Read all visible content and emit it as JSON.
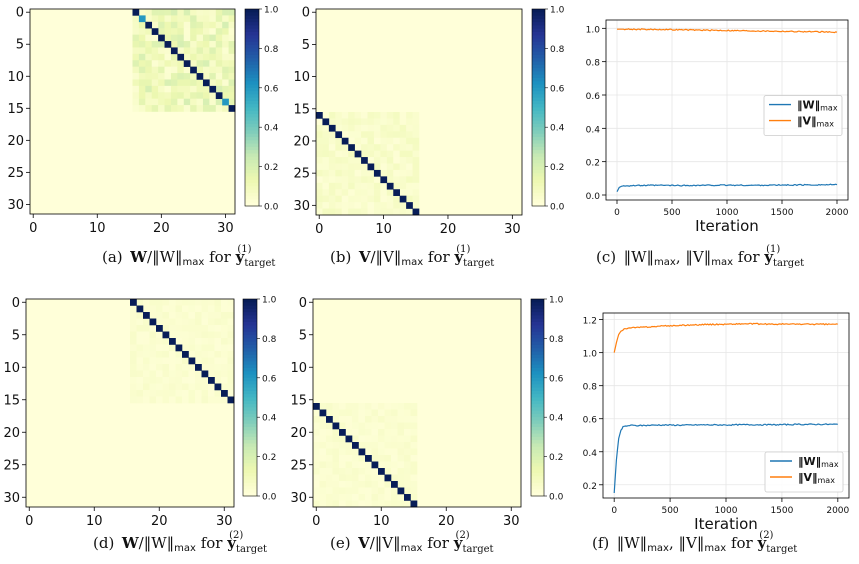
{
  "colors": {
    "scale": [
      "#ffffd9",
      "#edf8b1",
      "#c7e9b4",
      "#7fcdbb",
      "#41b6c4",
      "#1d91c0",
      "#225ea8",
      "#253494",
      "#081d58"
    ],
    "w_series": "#1f77b4",
    "v_series": "#ff7f0e"
  },
  "chart_data": [
    {
      "id": "a",
      "type": "heatmap",
      "caption": {
        "label": "(a)",
        "matrix": "W",
        "norm": "‖W‖",
        "sub": "max",
        "for": "for",
        "target": "y",
        "target_sub": "target",
        "target_sup": "(1)"
      },
      "size": 32,
      "diagonal": {
        "rows": [
          0,
          15
        ],
        "col_offset": 16,
        "value": 1.0
      },
      "diagonal_overrides": [
        {
          "row": 1,
          "value": 0.6
        },
        {
          "row": 14,
          "value": 0.6
        }
      ],
      "block": {
        "rows": [
          0,
          15
        ],
        "cols": [
          16,
          31
        ],
        "offdiag_range": [
          0.02,
          0.2
        ]
      },
      "xticks": [
        0,
        10,
        20,
        30
      ],
      "yticks": [
        0,
        5,
        10,
        15,
        20,
        25,
        30
      ],
      "colorbar": {
        "range": [
          0,
          1
        ],
        "ticks": [
          "0.0",
          "0.2",
          "0.4",
          "0.6",
          "0.8",
          "1.0"
        ]
      }
    },
    {
      "id": "b",
      "type": "heatmap",
      "caption": {
        "label": "(b)",
        "matrix": "V",
        "norm": "‖V‖",
        "sub": "max",
        "for": "for",
        "target": "y",
        "target_sub": "target",
        "target_sup": "(1)"
      },
      "size": 32,
      "diagonal": {
        "rows": [
          16,
          31
        ],
        "col_offset": -16,
        "value": 1.0
      },
      "block": {
        "rows": [
          16,
          31
        ],
        "cols": [
          0,
          15
        ],
        "offdiag_range": [
          0.01,
          0.08
        ]
      },
      "xticks": [
        0,
        10,
        20,
        30
      ],
      "yticks": [
        0,
        5,
        10,
        15,
        20,
        25,
        30
      ],
      "colorbar": {
        "range": [
          0,
          1
        ],
        "ticks": [
          "0.0",
          "0.2",
          "0.4",
          "0.6",
          "0.8",
          "1.0"
        ]
      }
    },
    {
      "id": "c",
      "type": "line",
      "caption": {
        "label": "(c)",
        "w": "‖W‖",
        "v": "‖V‖",
        "sub": "max",
        "for": "for",
        "target": "y",
        "target_sub": "target",
        "target_sup": "(1)"
      },
      "xlabel": "Iteration",
      "xlim": [
        -100,
        2100
      ],
      "ylim": [
        -0.03,
        1.05
      ],
      "xticks": [
        0,
        500,
        1000,
        1500,
        2000
      ],
      "yticks": [
        0.0,
        0.2,
        0.4,
        0.6,
        0.8,
        1.0
      ],
      "ytick_labels": [
        "0.0",
        "0.2",
        "0.4",
        "0.6",
        "0.8",
        "1.0"
      ],
      "grid": true,
      "legend_position": "center-right",
      "series": [
        {
          "name": "‖W‖",
          "sub": "max",
          "x": [
            0,
            20,
            40,
            60,
            100,
            200,
            400,
            600,
            800,
            1000,
            1200,
            1400,
            1600,
            1800,
            2000
          ],
          "y": [
            0.02,
            0.045,
            0.052,
            0.055,
            0.056,
            0.057,
            0.058,
            0.057,
            0.058,
            0.059,
            0.058,
            0.059,
            0.06,
            0.061,
            0.062
          ]
        },
        {
          "name": "‖V‖",
          "sub": "max",
          "x": [
            0,
            200,
            400,
            600,
            800,
            1000,
            1200,
            1400,
            1600,
            1800,
            2000
          ],
          "y": [
            0.995,
            0.994,
            0.993,
            0.991,
            0.989,
            0.987,
            0.985,
            0.983,
            0.981,
            0.979,
            0.977
          ]
        }
      ]
    },
    {
      "id": "d",
      "type": "heatmap",
      "caption": {
        "label": "(d)",
        "matrix": "W",
        "norm": "‖W‖",
        "sub": "max",
        "for": "for",
        "target": "y",
        "target_sub": "target",
        "target_sup": "(2)"
      },
      "size": 32,
      "diagonal": {
        "rows": [
          0,
          15
        ],
        "col_offset": 16,
        "value": 1.0
      },
      "block": {
        "rows": [
          0,
          15
        ],
        "cols": [
          16,
          31
        ],
        "offdiag_range": [
          0.01,
          0.05
        ]
      },
      "xticks": [
        0,
        10,
        20,
        30
      ],
      "yticks": [
        0,
        5,
        10,
        15,
        20,
        25,
        30
      ],
      "colorbar": {
        "range": [
          0,
          1
        ],
        "ticks": [
          "0.0",
          "0.2",
          "0.4",
          "0.6",
          "0.8",
          "1.0"
        ]
      }
    },
    {
      "id": "e",
      "type": "heatmap",
      "caption": {
        "label": "(e)",
        "matrix": "V",
        "norm": "‖V‖",
        "sub": "max",
        "for": "for",
        "target": "y",
        "target_sub": "target",
        "target_sup": "(2)"
      },
      "size": 32,
      "diagonal": {
        "rows": [
          16,
          31
        ],
        "col_offset": -16,
        "value": 1.0
      },
      "block": {
        "rows": [
          16,
          31
        ],
        "cols": [
          0,
          15
        ],
        "offdiag_range": [
          0.01,
          0.05
        ]
      },
      "xticks": [
        0,
        10,
        20,
        30
      ],
      "yticks": [
        0,
        5,
        10,
        15,
        20,
        25,
        30
      ],
      "colorbar": {
        "range": [
          0,
          1
        ],
        "ticks": [
          "0.0",
          "0.2",
          "0.4",
          "0.6",
          "0.8",
          "1.0"
        ]
      }
    },
    {
      "id": "f",
      "type": "line",
      "caption": {
        "label": "(f)",
        "w": "‖W‖",
        "v": "‖V‖",
        "sub": "max",
        "for": "for",
        "target": "y",
        "target_sub": "target",
        "target_sup": "(2)"
      },
      "xlabel": "Iteration",
      "xlim": [
        -100,
        2100
      ],
      "ylim": [
        0.12,
        1.24
      ],
      "xticks": [
        0,
        500,
        1000,
        1500,
        2000
      ],
      "yticks": [
        0.2,
        0.4,
        0.6,
        0.8,
        1.0,
        1.2
      ],
      "ytick_labels": [
        "0.2",
        "0.4",
        "0.6",
        "0.8",
        "1.0",
        "1.2"
      ],
      "grid": true,
      "legend_position": "lower-right",
      "series": [
        {
          "name": "‖W‖",
          "sub": "max",
          "x": [
            0,
            20,
            40,
            60,
            80,
            100,
            150,
            200,
            300,
            400,
            600,
            800,
            1000,
            1200,
            1400,
            1600,
            1800,
            2000
          ],
          "y": [
            0.15,
            0.35,
            0.48,
            0.53,
            0.55,
            0.555,
            0.56,
            0.558,
            0.56,
            0.562,
            0.561,
            0.563,
            0.562,
            0.564,
            0.563,
            0.565,
            0.566,
            0.566
          ]
        },
        {
          "name": "‖V‖",
          "sub": "max",
          "x": [
            0,
            20,
            40,
            60,
            80,
            100,
            150,
            200,
            300,
            400,
            600,
            800,
            1000,
            1200,
            1400,
            1600,
            1800,
            2000
          ],
          "y": [
            1.0,
            1.06,
            1.11,
            1.13,
            1.14,
            1.145,
            1.15,
            1.152,
            1.155,
            1.16,
            1.165,
            1.17,
            1.172,
            1.175,
            1.172,
            1.173,
            1.172,
            1.172
          ]
        }
      ]
    }
  ]
}
